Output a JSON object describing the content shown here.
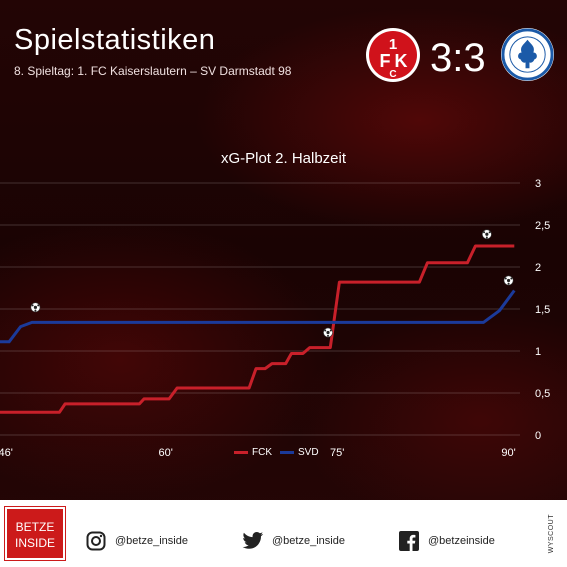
{
  "header": {
    "title": "Spielstatistiken",
    "subtitle": "8. Spieltag: 1. FC Kaiserslautern – SV Darmstadt 98",
    "score": "3:3",
    "home_logo_text": "1FCK",
    "away_logo_text": "SPORTVEREIN DARMSTADT 1898"
  },
  "chart_data": {
    "type": "line",
    "title": "xG-Plot 2. Halbzeit",
    "x_ticks": [
      "46'",
      "60'",
      "75'",
      "90'"
    ],
    "x_tick_values": [
      46,
      60,
      75,
      90
    ],
    "y_ticks": [
      "0",
      "0,5",
      "1",
      "1,5",
      "2",
      "2,5",
      "3"
    ],
    "y_tick_values": [
      0,
      0.5,
      1,
      1.5,
      2,
      2.5,
      3
    ],
    "xlim": [
      45.5,
      91
    ],
    "ylim": [
      0,
      3
    ],
    "grid": true,
    "legend_position": "bottom-center",
    "series": [
      {
        "name": "FCK",
        "color": "#c8202a",
        "step_points": [
          [
            45.5,
            0.27
          ],
          [
            50.7,
            0.27
          ],
          [
            51.2,
            0.37
          ],
          [
            57.7,
            0.37
          ],
          [
            58.1,
            0.43
          ],
          [
            60.3,
            0.43
          ],
          [
            61.0,
            0.56
          ],
          [
            67.3,
            0.56
          ],
          [
            67.9,
            0.79
          ],
          [
            68.7,
            0.79
          ],
          [
            69.3,
            0.85
          ],
          [
            70.5,
            0.85
          ],
          [
            71.0,
            0.97
          ],
          [
            72.0,
            0.97
          ],
          [
            72.6,
            1.04
          ],
          [
            74.4,
            1.04
          ],
          [
            75.2,
            1.82
          ],
          [
            82.2,
            1.82
          ],
          [
            82.9,
            2.05
          ],
          [
            86.4,
            2.05
          ],
          [
            87.1,
            2.25
          ],
          [
            90.5,
            2.25
          ]
        ],
        "goals": [
          [
            74.2,
            1.22
          ],
          [
            88.1,
            2.39
          ]
        ]
      },
      {
        "name": "SVD",
        "color": "#1b3a9a",
        "step_points": [
          [
            45.5,
            1.11
          ],
          [
            46.3,
            1.11
          ],
          [
            47.3,
            1.29
          ],
          [
            48.3,
            1.34
          ],
          [
            87.8,
            1.34
          ],
          [
            89.2,
            1.48
          ],
          [
            90.5,
            1.72
          ]
        ],
        "goals": [
          [
            48.6,
            1.52
          ],
          [
            90.0,
            1.84
          ]
        ]
      }
    ]
  },
  "footer": {
    "brand": "BETZE INSIDE",
    "instagram": "@betze_inside",
    "twitter": "@betze_inside",
    "facebook": "@betzeinside",
    "credit": "WYSCOUT"
  }
}
